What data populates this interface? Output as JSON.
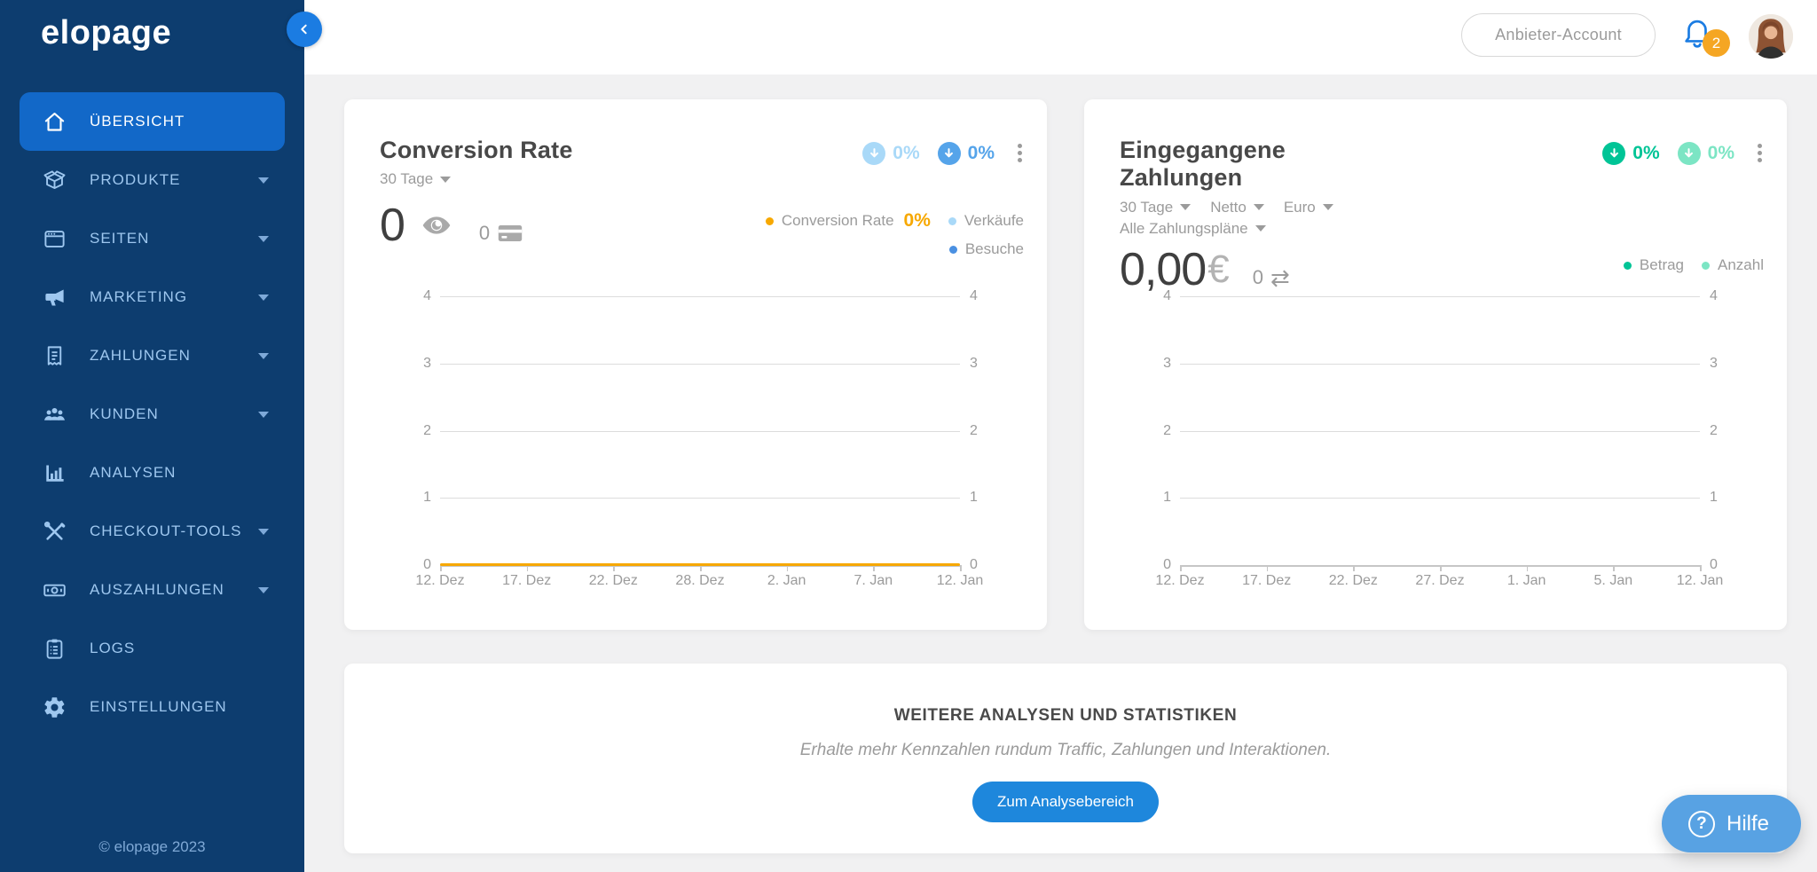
{
  "sidebar": {
    "logo": "elopage",
    "copyright": "© elopage 2023",
    "items": [
      {
        "label": "ÜBERSICHT",
        "icon": "home",
        "active": true,
        "expandable": false
      },
      {
        "label": "PRODUKTE",
        "icon": "box",
        "active": false,
        "expandable": true
      },
      {
        "label": "SEITEN",
        "icon": "window",
        "active": false,
        "expandable": true
      },
      {
        "label": "MARKETING",
        "icon": "megaphone",
        "active": false,
        "expandable": true
      },
      {
        "label": "ZAHLUNGEN",
        "icon": "receipt",
        "active": false,
        "expandable": true
      },
      {
        "label": "KUNDEN",
        "icon": "users",
        "active": false,
        "expandable": true
      },
      {
        "label": "ANALYSEN",
        "icon": "chart",
        "active": false,
        "expandable": false
      },
      {
        "label": "CHECKOUT-TOOLS",
        "icon": "tools",
        "active": false,
        "expandable": true
      },
      {
        "label": "AUSZAHLUNGEN",
        "icon": "banknote",
        "active": false,
        "expandable": true
      },
      {
        "label": "LOGS",
        "icon": "clipboard",
        "active": false,
        "expandable": false
      },
      {
        "label": "EINSTELLUNGEN",
        "icon": "gear",
        "active": false,
        "expandable": false
      }
    ]
  },
  "header": {
    "account_button_label": "Anbieter-Account",
    "notification_count": "2"
  },
  "conversion_card": {
    "title": "Conversion Rate",
    "filters": [
      {
        "label": "30 Tage"
      }
    ],
    "views_value": "0",
    "sales_value": "0",
    "trend_badges": [
      {
        "value": "0%",
        "color": "#a9d9f8",
        "direction": "down"
      },
      {
        "value": "0%",
        "color": "#55a4ea",
        "direction": "down"
      }
    ],
    "legend": [
      {
        "label": "Conversion Rate",
        "value": "0%",
        "color": "#f7a800"
      },
      {
        "label": "Verkäufe",
        "color": "#a9d9f8"
      },
      {
        "label": "Besuche",
        "color": "#4a90e2"
      }
    ]
  },
  "payments_card": {
    "title": "Eingegangene Zahlungen",
    "filters": [
      {
        "label": "30 Tage"
      },
      {
        "label": "Netto"
      },
      {
        "label": "Euro"
      },
      {
        "label": "Alle Zahlungspläne"
      }
    ],
    "amount_value": "0,00",
    "currency_symbol": "€",
    "transactions_value": "0",
    "transfer_glyph": "⇄",
    "trend_badges": [
      {
        "value": "0%",
        "color": "#00c496",
        "direction": "down"
      },
      {
        "value": "0%",
        "color": "#7ce5c4",
        "direction": "down"
      }
    ],
    "legend": [
      {
        "label": "Betrag",
        "color": "#00c496"
      },
      {
        "label": "Anzahl",
        "color": "#7ce5c4"
      }
    ]
  },
  "promo_card": {
    "title": "WEITERE ANALYSEN UND STATISTIKEN",
    "subtitle": "Erhalte mehr Kennzahlen rundum Traffic, Zahlungen und Interaktionen.",
    "button_label": "Zum Analysebereich"
  },
  "help_button": {
    "label": "Hilfe"
  },
  "chart_data": [
    {
      "type": "line",
      "title": "Conversion Rate",
      "x_labels": [
        "12. Dez",
        "17. Dez",
        "22. Dez",
        "28. Dez",
        "2. Jan",
        "7. Jan",
        "12. Jan"
      ],
      "y_ticks": [
        0,
        1,
        2,
        3,
        4
      ],
      "y_range": [
        0,
        4
      ],
      "dual_y_labels": true,
      "grid": true,
      "legend_position": "top-right",
      "zero_line_color": "#f7a800",
      "series": [
        {
          "name": "Conversion Rate",
          "color": "#f7a800",
          "values": [
            0,
            0,
            0,
            0,
            0,
            0,
            0
          ]
        },
        {
          "name": "Verkäufe",
          "color": "#a9d9f8",
          "values": [
            0,
            0,
            0,
            0,
            0,
            0,
            0
          ]
        },
        {
          "name": "Besuche",
          "color": "#4a90e2",
          "values": [
            0,
            0,
            0,
            0,
            0,
            0,
            0
          ]
        }
      ]
    },
    {
      "type": "line",
      "title": "Eingegangene Zahlungen",
      "x_labels": [
        "12. Dez",
        "17. Dez",
        "22. Dez",
        "27. Dez",
        "1. Jan",
        "5. Jan",
        "12. Jan"
      ],
      "y_ticks": [
        0,
        1,
        2,
        3,
        4
      ],
      "y_range": [
        0,
        4
      ],
      "dual_y_labels": true,
      "grid": true,
      "legend_position": "top-right",
      "zero_line_color": null,
      "series": [
        {
          "name": "Betrag",
          "color": "#00c496",
          "values": [
            0,
            0,
            0,
            0,
            0,
            0,
            0
          ]
        },
        {
          "name": "Anzahl",
          "color": "#7ce5c4",
          "values": [
            0,
            0,
            0,
            0,
            0,
            0,
            0
          ]
        }
      ]
    }
  ]
}
